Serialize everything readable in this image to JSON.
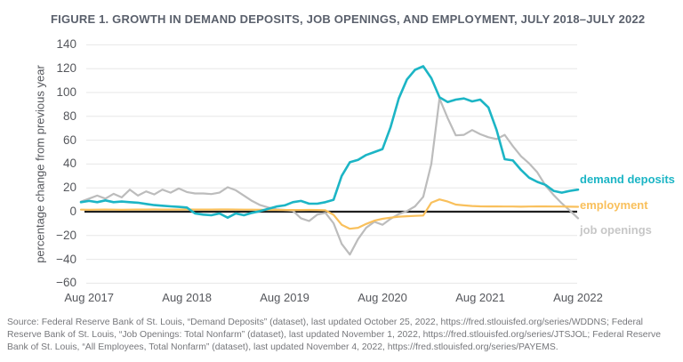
{
  "title": "FIGURE 1. GROWTH IN DEMAND DEPOSITS, JOB OPENINGS, AND EMPLOYMENT, JULY 2018–JULY 2022",
  "y_axis": {
    "label": "percentage change from previous year",
    "ticks": [
      140,
      120,
      100,
      80,
      60,
      40,
      20,
      0,
      -20,
      -40,
      -60
    ]
  },
  "x_axis": {
    "tick_labels": [
      "Aug 2017",
      "Aug 2018",
      "Aug 2019",
      "Aug 2020",
      "Aug 2021",
      "Aug 2022"
    ]
  },
  "legend": {
    "items": [
      {
        "label": "demand deposits",
        "color": "#1cb5c5"
      },
      {
        "label": "employment",
        "color": "#f9c05c"
      },
      {
        "label": "job openings",
        "color": "#c7c7c7"
      }
    ]
  },
  "colors": {
    "demand_deposits": "#1cb5c5",
    "employment": "#f9c05c",
    "job_openings": "#bcbcbc",
    "zero_line": "#1f1f1f",
    "gridline": "#e7e7e7",
    "title_text": "#5a606c",
    "axis_text": "#55575c",
    "source_text": "#76777b"
  },
  "source": {
    "lines": [
      "Source: Federal Reserve Bank of St. Louis, “Demand Deposits” (dataset), last updated October 25, 2022, https://fred.stlouisfed.org/series/WDDNS; Federal",
      "Reserve Bank of St. Louis, “Job Openings: Total Nonfarm” (dataset), last updated November 1, 2022, https://fred.stlouisfed.org/series/JTSJOL; Federal Reserve",
      "Bank of St. Louis, “All Employees, Total Nonfarm” (dataset), last updated November 4, 2022, https://fred.stlouisfed.org/series/PAYEMS."
    ]
  },
  "chart_data": {
    "type": "line",
    "title": "FIGURE 1. GROWTH IN DEMAND DEPOSITS, JOB OPENINGS, AND EMPLOYMENT, JULY 2018–JULY 2022",
    "xlabel": "",
    "ylabel": "percentage change from previous year",
    "ylim": [
      -60,
      140
    ],
    "y_tick_step": 20,
    "grid": "horizontal",
    "legend_position": "right",
    "zero_line": true,
    "x_tick_labels": [
      "Aug 2017",
      "Aug 2018",
      "Aug 2019",
      "Aug 2020",
      "Aug 2021",
      "Aug 2022"
    ],
    "months": [
      "Jul 2017",
      "Aug 2017",
      "Sep 2017",
      "Oct 2017",
      "Nov 2017",
      "Dec 2017",
      "Jan 2018",
      "Feb 2018",
      "Mar 2018",
      "Apr 2018",
      "May 2018",
      "Jun 2018",
      "Jul 2018",
      "Aug 2018",
      "Sep 2018",
      "Oct 2018",
      "Nov 2018",
      "Dec 2018",
      "Jan 2019",
      "Feb 2019",
      "Mar 2019",
      "Apr 2019",
      "May 2019",
      "Jun 2019",
      "Jul 2019",
      "Aug 2019",
      "Sep 2019",
      "Oct 2019",
      "Nov 2019",
      "Dec 2019",
      "Jan 2020",
      "Feb 2020",
      "Mar 2020",
      "Apr 2020",
      "May 2020",
      "Jun 2020",
      "Jul 2020",
      "Aug 2020",
      "Sep 2020",
      "Oct 2020",
      "Nov 2020",
      "Dec 2020",
      "Jan 2021",
      "Feb 2021",
      "Mar 2021",
      "Apr 2021",
      "May 2021",
      "Jun 2021",
      "Jul 2021",
      "Aug 2021",
      "Sep 2021",
      "Oct 2021",
      "Nov 2021",
      "Dec 2021",
      "Jan 2022",
      "Feb 2022",
      "Mar 2022",
      "Apr 2022",
      "May 2022",
      "Jun 2022",
      "Jul 2022",
      "Aug 2022"
    ],
    "series": [
      {
        "name": "job openings",
        "color": "#bcbcbc",
        "values": [
          8.5,
          11,
          13.5,
          11,
          15,
          12,
          18.5,
          13.5,
          17,
          14.5,
          18.5,
          16,
          19.5,
          16.5,
          15.3,
          15.3,
          14.8,
          16,
          20.5,
          18,
          13.5,
          9,
          5.5,
          3.5,
          2,
          1.5,
          0.8,
          -5.5,
          -7.8,
          -2.5,
          -1,
          -9.7,
          -27,
          -36,
          -23,
          -13.5,
          -8.5,
          -11,
          -6,
          -2,
          0.5,
          4.5,
          12.5,
          40,
          95,
          78.5,
          64,
          64.5,
          68.5,
          65,
          62.5,
          61,
          64.5,
          55,
          46.5,
          40.5,
          33,
          22,
          14,
          7,
          1,
          -5.5
        ]
      },
      {
        "name": "employment",
        "color": "#f9c05c",
        "values": [
          1.7,
          1.6,
          1.7,
          1.8,
          1.7,
          1.6,
          1.7,
          1.8,
          1.8,
          1.9,
          1.8,
          1.8,
          1.8,
          1.9,
          1.8,
          1.8,
          1.8,
          1.9,
          1.9,
          1.8,
          1.7,
          1.7,
          1.6,
          1.5,
          1.5,
          1.4,
          1.4,
          1.4,
          1.5,
          1.4,
          1.2,
          -2.7,
          -11,
          -14.3,
          -13.5,
          -10.3,
          -7.5,
          -6,
          -5,
          -4.2,
          -3.8,
          -3.5,
          -3.2,
          7.5,
          10.3,
          8.5,
          6,
          5.3,
          4.8,
          4.5,
          4.4,
          4.4,
          4.3,
          4.3,
          4.2,
          4.3,
          4.4,
          4.4,
          4.3,
          4.3,
          4.2,
          4.1
        ]
      },
      {
        "name": "demand deposits",
        "color": "#1cb5c5",
        "values": [
          8,
          9,
          8,
          9.5,
          8,
          8.5,
          8,
          7.5,
          6.5,
          5.5,
          5,
          4.5,
          4,
          3.5,
          -1.5,
          -2.5,
          -3,
          -1.5,
          -5,
          -1.5,
          -3,
          -1,
          0.5,
          2.5,
          4.3,
          5.3,
          8,
          9,
          6.7,
          6.7,
          8,
          10,
          30,
          41.5,
          43.5,
          47.5,
          50,
          52.5,
          71,
          95,
          111,
          119,
          122,
          112,
          96,
          92,
          94,
          95,
          92.5,
          94,
          87.5,
          68.5,
          44,
          43,
          35,
          28.5,
          25,
          22.5,
          17.5,
          16,
          17.5,
          18.5
        ]
      }
    ]
  }
}
